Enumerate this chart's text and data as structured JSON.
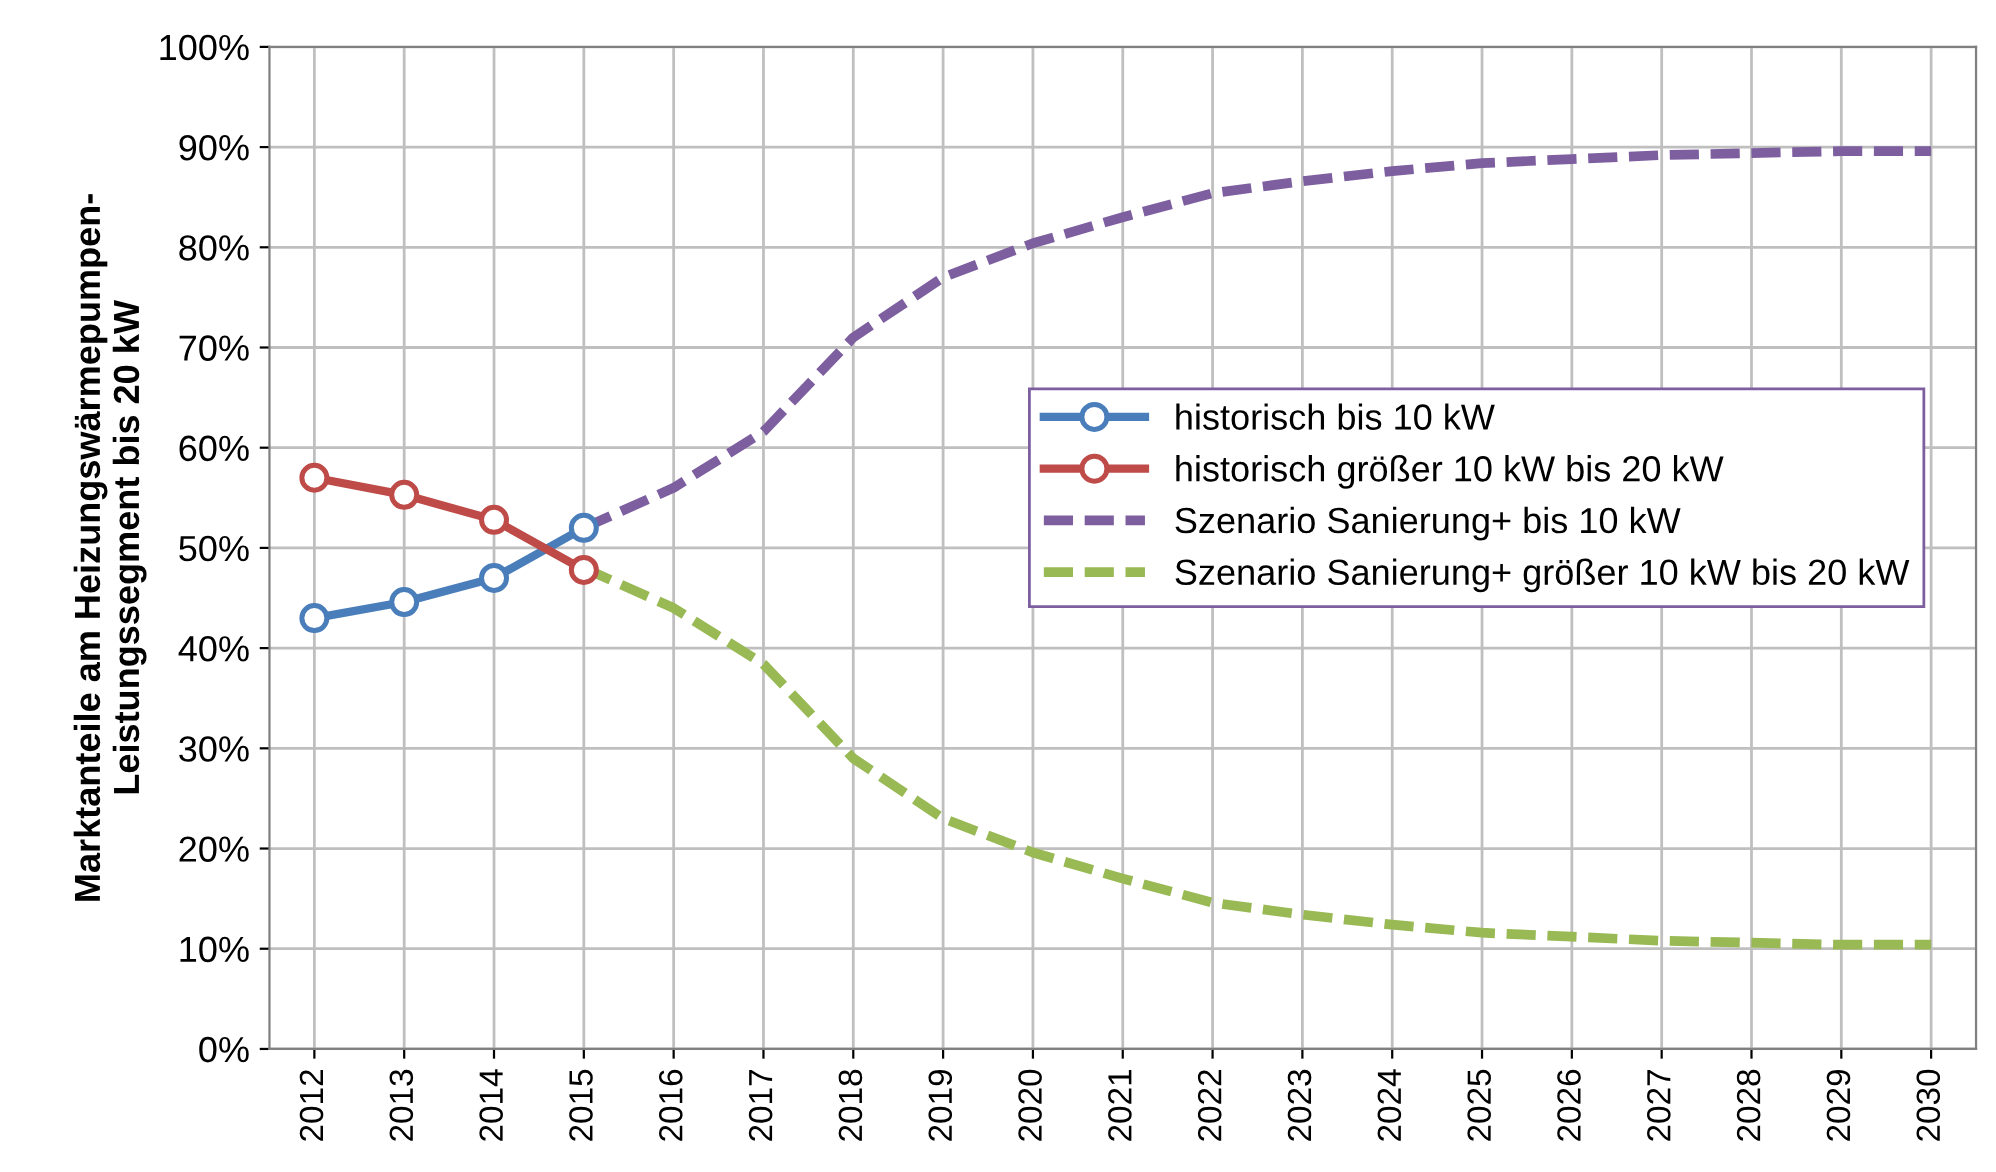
{
  "chart_data": {
    "type": "line",
    "ylabel": "Marktanteile am Heizungswärmepumpen-\nLeistungssegment bis 20 kW",
    "categories": [
      "2012",
      "2013",
      "2014",
      "2015",
      "2016",
      "2017",
      "2018",
      "2019",
      "2020",
      "2021",
      "2022",
      "2023",
      "2024",
      "2025",
      "2026",
      "2027",
      "2028",
      "2029",
      "2030"
    ],
    "series": [
      {
        "name": "historisch bis 10 kW",
        "color": "#4a7ebb",
        "marker": "circle",
        "line_style": "solid",
        "values": [
          43,
          44.6,
          47,
          52,
          null,
          null,
          null,
          null,
          null,
          null,
          null,
          null,
          null,
          null,
          null,
          null,
          null,
          null,
          null
        ]
      },
      {
        "name": "historisch größer 10 kW bis 20 kW",
        "color": "#be4b48",
        "marker": "circle",
        "line_style": "solid",
        "values": [
          57,
          55.3,
          52.8,
          47.8,
          null,
          null,
          null,
          null,
          null,
          null,
          null,
          null,
          null,
          null,
          null,
          null,
          null,
          null,
          null
        ]
      },
      {
        "name": "Szenario Sanierung+ bis 10 kW",
        "color": "#7d5fa0",
        "marker": "none",
        "line_style": "dashed",
        "values": [
          null,
          null,
          null,
          52,
          56,
          61.6,
          71,
          77,
          80.4,
          83,
          85.4,
          86.6,
          87.6,
          88.4,
          88.8,
          89.2,
          89.4,
          89.6,
          89.6
        ]
      },
      {
        "name": "Szenario Sanierung+ größer 10 kW bis 20 kW",
        "color": "#98b954",
        "marker": "none",
        "line_style": "dashed",
        "values": [
          null,
          null,
          null,
          48,
          44,
          38.4,
          29,
          23,
          19.6,
          17,
          14.6,
          13.4,
          12.4,
          11.6,
          11.2,
          10.8,
          10.6,
          10.4,
          10.4
        ]
      }
    ],
    "ylim": [
      0,
      100
    ],
    "yticks": [
      {
        "value": 0,
        "label": "0%"
      },
      {
        "value": 10,
        "label": "10%"
      },
      {
        "value": 20,
        "label": "20%"
      },
      {
        "value": 30,
        "label": "30%"
      },
      {
        "value": 40,
        "label": "40%"
      },
      {
        "value": 50,
        "label": "50%"
      },
      {
        "value": 60,
        "label": "60%"
      },
      {
        "value": 70,
        "label": "70%"
      },
      {
        "value": 80,
        "label": "80%"
      },
      {
        "value": 90,
        "label": "90%"
      },
      {
        "value": 100,
        "label": "100%"
      }
    ],
    "grid": true,
    "legend": "right"
  }
}
